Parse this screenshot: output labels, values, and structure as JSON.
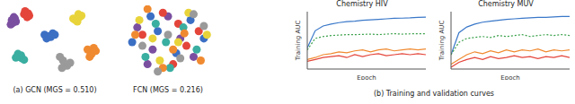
{
  "chart_data": [
    {
      "type": "scatter",
      "subtitle": "(a) GCN (MGS = 0.510)",
      "xlim": [
        0,
        100
      ],
      "ylim": [
        0,
        100
      ],
      "tick_labels": false,
      "grid": false,
      "series": [
        {
          "color": "#7b4fa0",
          "x": [
            8,
            10,
            12,
            9,
            11,
            7
          ],
          "y": [
            80,
            84,
            78,
            76,
            82,
            74
          ]
        },
        {
          "color": "#e4453a",
          "x": [
            20,
            22,
            25,
            23,
            21,
            24
          ],
          "y": [
            88,
            90,
            86,
            84,
            92,
            89
          ]
        },
        {
          "color": "#3b6fc4",
          "x": [
            40,
            44,
            48,
            42,
            46,
            50
          ],
          "y": [
            60,
            58,
            62,
            55,
            57,
            60
          ]
        },
        {
          "color": "#3aaea0",
          "x": [
            15,
            18,
            14,
            20,
            17,
            12
          ],
          "y": [
            30,
            28,
            34,
            26,
            32,
            29
          ]
        },
        {
          "color": "#e8d43a",
          "x": [
            70,
            74,
            72,
            76,
            68,
            73
          ],
          "y": [
            80,
            84,
            78,
            86,
            82,
            88
          ]
        },
        {
          "color": "#f08a30",
          "x": [
            82,
            85,
            88,
            84,
            90,
            86
          ],
          "y": [
            40,
            36,
            42,
            30,
            38,
            34
          ]
        },
        {
          "color": "#9a9a9a",
          "x": [
            60,
            58,
            62,
            55,
            65,
            57
          ],
          "y": [
            20,
            25,
            18,
            30,
            22,
            15
          ]
        }
      ]
    },
    {
      "type": "scatter",
      "subtitle": "FCN (MGS = 0.216)",
      "xlim": [
        0,
        100
      ],
      "ylim": [
        0,
        100
      ],
      "tick_labels": false,
      "grid": false,
      "series": [
        {
          "color": "#7b4fa0",
          "x": [
            20,
            35,
            50,
            62,
            75,
            30
          ],
          "y": [
            70,
            40,
            85,
            55,
            30,
            20
          ]
        },
        {
          "color": "#e4453a",
          "x": [
            45,
            60,
            25,
            80,
            55,
            68
          ],
          "y": [
            90,
            75,
            60,
            65,
            20,
            45
          ]
        },
        {
          "color": "#3b6fc4",
          "x": [
            15,
            40,
            58,
            72,
            85,
            33
          ],
          "y": [
            50,
            65,
            35,
            80,
            55,
            85
          ]
        },
        {
          "color": "#3aaea0",
          "x": [
            28,
            48,
            65,
            78,
            38,
            52
          ],
          "y": [
            30,
            50,
            70,
            40,
            75,
            15
          ]
        },
        {
          "color": "#e8d43a",
          "x": [
            22,
            42,
            70,
            88,
            60,
            35
          ],
          "y": [
            80,
            25,
            90,
            60,
            50,
            55
          ]
        },
        {
          "color": "#f08a30",
          "x": [
            55,
            18,
            45,
            82,
            66,
            30
          ],
          "y": [
            40,
            60,
            15,
            25,
            62,
            95
          ]
        },
        {
          "color": "#9a9a9a",
          "x": [
            40,
            62,
            25,
            75,
            50,
            85
          ],
          "y": [
            10,
            28,
            45,
            88,
            60,
            72
          ]
        }
      ]
    },
    {
      "type": "line",
      "title": "Chemistry HIV",
      "xlabel": "Epoch",
      "ylabel": "Training AUC",
      "tick_labels": false,
      "grid": false,
      "x": [
        0,
        2,
        4,
        6,
        8,
        10,
        12,
        14,
        16,
        18,
        20,
        22,
        24,
        26,
        28,
        30
      ],
      "xlim": [
        0,
        30
      ],
      "xticks": [
        0,
        10,
        20,
        30
      ],
      "ylim": [
        0.4,
        1.0
      ],
      "yticks": [
        0.4,
        0.6,
        0.8,
        1.0
      ],
      "series": [
        {
          "color": "#3a78c9",
          "line_style": "solid",
          "values": [
            0.62,
            0.8,
            0.85,
            0.87,
            0.885,
            0.895,
            0.9,
            0.91,
            0.915,
            0.92,
            0.925,
            0.93,
            0.932,
            0.935,
            0.94,
            0.942
          ]
        },
        {
          "color": "#3aa04a",
          "line_style": "dotted",
          "values": [
            0.6,
            0.72,
            0.74,
            0.75,
            0.755,
            0.76,
            0.76,
            0.762,
            0.765,
            0.76,
            0.765,
            0.77,
            0.765,
            0.768,
            0.77,
            0.77
          ]
        },
        {
          "color": "#f08a30",
          "line_style": "solid",
          "values": [
            0.5,
            0.52,
            0.55,
            0.56,
            0.58,
            0.57,
            0.59,
            0.6,
            0.58,
            0.6,
            0.61,
            0.59,
            0.6,
            0.61,
            0.6,
            0.61
          ]
        },
        {
          "color": "#e4453a",
          "line_style": "solid",
          "values": [
            0.48,
            0.5,
            0.52,
            0.53,
            0.54,
            0.52,
            0.55,
            0.53,
            0.55,
            0.56,
            0.54,
            0.55,
            0.56,
            0.55,
            0.56,
            0.55
          ]
        }
      ]
    },
    {
      "type": "line",
      "title": "Chemistry MUV",
      "xlabel": "Epoch",
      "ylabel": "Training AUC",
      "tick_labels": false,
      "grid": false,
      "x": [
        0,
        2,
        4,
        6,
        8,
        10,
        12,
        14,
        16,
        18,
        20,
        22,
        24,
        26,
        28,
        30
      ],
      "xlim": [
        0,
        30
      ],
      "xticks": [
        0,
        10,
        20,
        30
      ],
      "ylim": [
        0.4,
        1.0
      ],
      "yticks": [
        0.4,
        0.6,
        0.8,
        1.0
      ],
      "series": [
        {
          "color": "#3a78c9",
          "line_style": "solid",
          "values": [
            0.55,
            0.78,
            0.84,
            0.87,
            0.89,
            0.9,
            0.91,
            0.92,
            0.925,
            0.93,
            0.935,
            0.94,
            0.94,
            0.945,
            0.95,
            0.95
          ]
        },
        {
          "color": "#3aa04a",
          "line_style": "dotted",
          "values": [
            0.55,
            0.68,
            0.72,
            0.73,
            0.74,
            0.73,
            0.75,
            0.74,
            0.75,
            0.76,
            0.74,
            0.75,
            0.76,
            0.75,
            0.76,
            0.75
          ]
        },
        {
          "color": "#f08a30",
          "line_style": "solid",
          "values": [
            0.45,
            0.5,
            0.55,
            0.58,
            0.56,
            0.59,
            0.57,
            0.6,
            0.58,
            0.6,
            0.59,
            0.61,
            0.58,
            0.6,
            0.59,
            0.6
          ]
        },
        {
          "color": "#e4453a",
          "line_style": "solid",
          "values": [
            0.42,
            0.47,
            0.5,
            0.52,
            0.5,
            0.53,
            0.51,
            0.52,
            0.54,
            0.52,
            0.53,
            0.51,
            0.53,
            0.52,
            0.54,
            0.52
          ]
        }
      ]
    }
  ],
  "captions": {
    "b": "(b) Training and validation curves"
  }
}
